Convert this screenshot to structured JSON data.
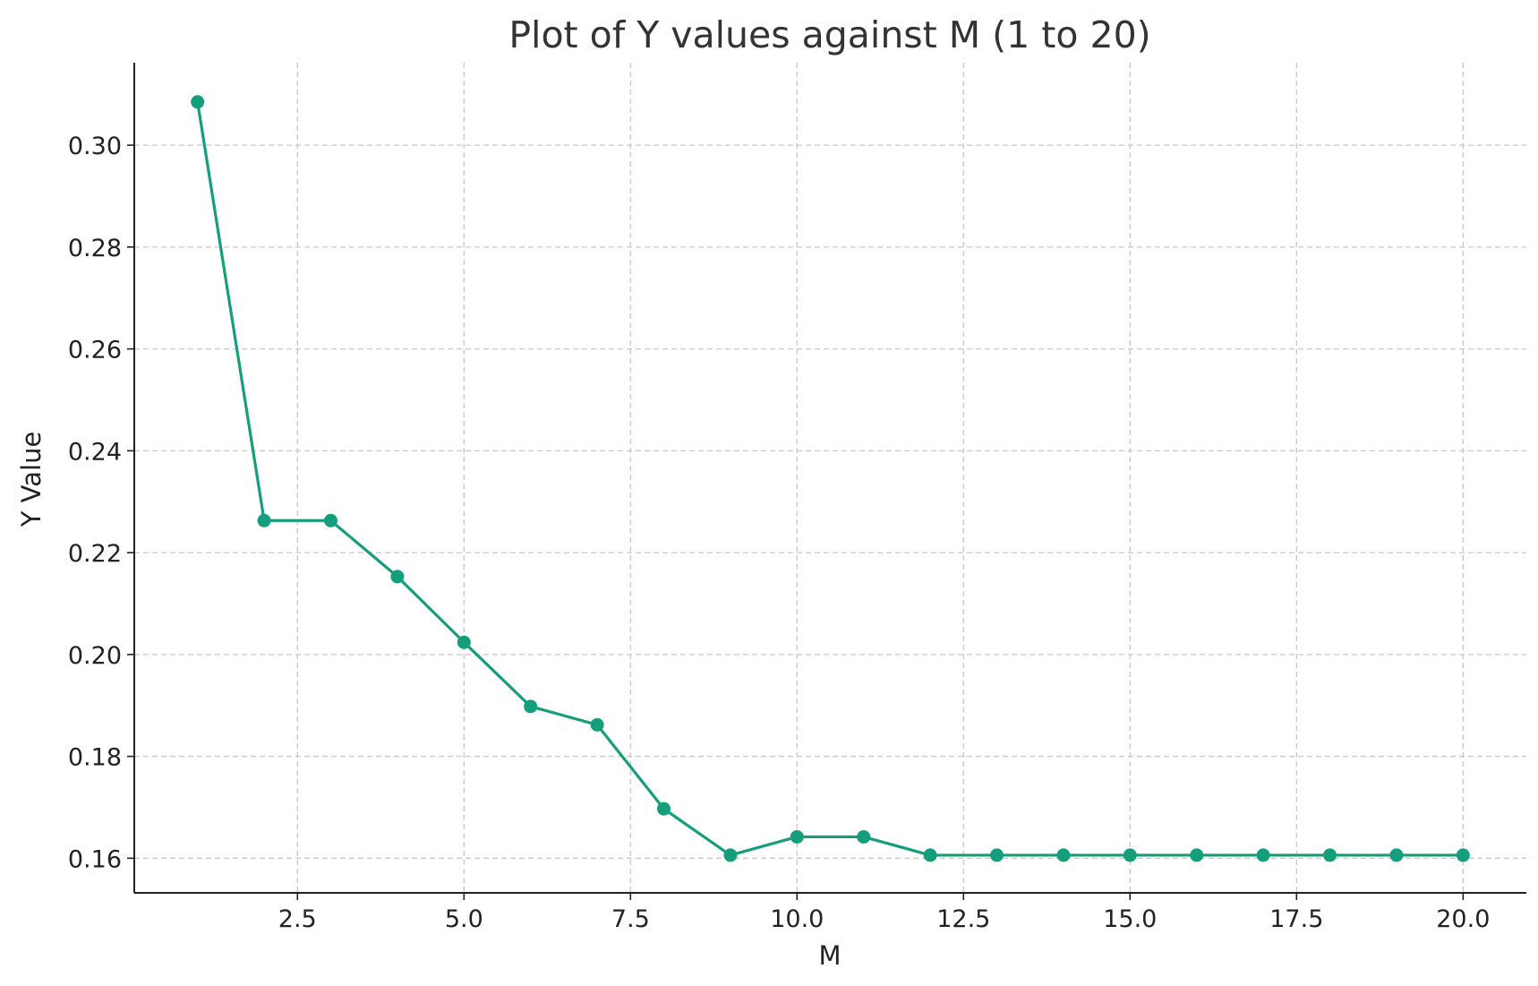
{
  "chart_data": {
    "type": "line",
    "title": "Plot of Y values against M (1 to 20)",
    "xlabel": "M",
    "ylabel": "Y Value",
    "xlim": [
      0.05,
      20.95
    ],
    "ylim": [
      0.1532,
      0.3162
    ],
    "x_ticks": [
      2.5,
      5.0,
      7.5,
      10.0,
      12.5,
      15.0,
      17.5,
      20.0
    ],
    "x_tick_labels": [
      "2.5",
      "5.0",
      "7.5",
      "10.0",
      "12.5",
      "15.0",
      "17.5",
      "20.0"
    ],
    "y_ticks": [
      0.16,
      0.18,
      0.2,
      0.22,
      0.24,
      0.26,
      0.28,
      0.3
    ],
    "y_tick_labels": [
      "0.16",
      "0.18",
      "0.20",
      "0.22",
      "0.24",
      "0.26",
      "0.28",
      "0.30"
    ],
    "grid": true,
    "color": "#159e7b",
    "series": [
      {
        "x": [
          1,
          2,
          3,
          4,
          5,
          6,
          7,
          8,
          9,
          10,
          11,
          12,
          13,
          14,
          15,
          16,
          17,
          18,
          19,
          20
        ],
        "values": [
          0.3085,
          0.2263,
          0.2263,
          0.2153,
          0.2024,
          0.1898,
          0.1862,
          0.1697,
          0.1606,
          0.1642,
          0.1642,
          0.1606,
          0.1606,
          0.1606,
          0.1606,
          0.1606,
          0.1606,
          0.1606,
          0.1606,
          0.1606
        ]
      }
    ]
  }
}
